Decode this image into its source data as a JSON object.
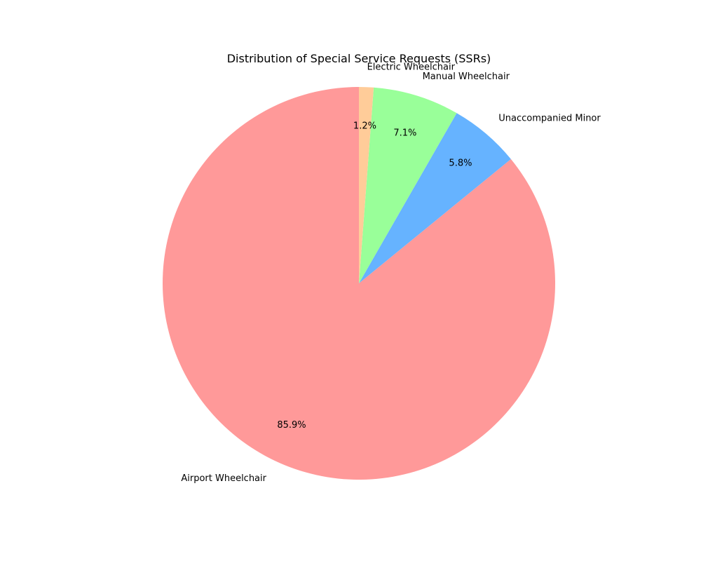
{
  "chart_data": {
    "type": "pie",
    "title": "Distribution of Special Service Requests (SSRs)",
    "start_angle_deg": 90,
    "direction": "counterclockwise",
    "slices": [
      {
        "label": "Airport Wheelchair",
        "value": 85.9,
        "pct_label": "85.9%",
        "color": "#ff9999"
      },
      {
        "label": "Unaccompanied Minor",
        "value": 5.8,
        "pct_label": "5.8%",
        "color": "#66b3ff"
      },
      {
        "label": "Manual Wheelchair",
        "value": 7.1,
        "pct_label": "7.1%",
        "color": "#99ff99"
      },
      {
        "label": "Electric Wheelchair",
        "value": 1.2,
        "pct_label": "1.2%",
        "color": "#ffcc99"
      }
    ],
    "legend": "none"
  }
}
